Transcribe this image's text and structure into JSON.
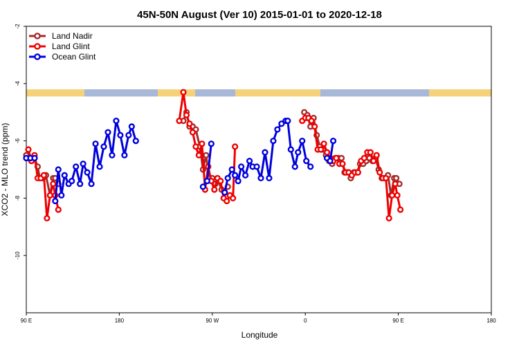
{
  "chart_data": {
    "type": "line",
    "title": "45N-50N August (Ver 10)   2015-01-01 to 2020-12-18",
    "xlabel": "Longitude",
    "ylabel": "XCO2 - MLO trend (ppm)",
    "xlim": [
      90,
      450
    ],
    "ylim": [
      -12,
      -2
    ],
    "x_ticks": [
      {
        "value": 90,
        "label": "90 E"
      },
      {
        "value": 180,
        "label": "180"
      },
      {
        "value": 270,
        "label": "90 W"
      },
      {
        "value": 360,
        "label": "0"
      },
      {
        "value": 450,
        "label": "90 E"
      },
      {
        "value": 540,
        "label": "180"
      }
    ],
    "y_ticks": [
      {
        "value": -2,
        "label": "-2"
      },
      {
        "value": -4,
        "label": "-4"
      },
      {
        "value": -6,
        "label": "-6"
      },
      {
        "value": -8,
        "label": "-8"
      },
      {
        "value": -10,
        "label": "-10"
      }
    ],
    "x_domain": [
      90,
      540
    ],
    "grid": false,
    "legend_position": "top-left",
    "land_mask_band": {
      "y_top": -4.2,
      "y_bottom": -4.45,
      "land_color": "#f5d27a",
      "ocean_color": "#a8b8d8"
    },
    "series": [
      {
        "name": "Land Nadir",
        "color": "#a52a2a",
        "points": [
          [
            90,
            -6.5
          ],
          [
            92,
            -6.6
          ],
          [
            95,
            -6.7
          ],
          [
            98,
            -6.6
          ],
          [
            101,
            -6.9
          ],
          [
            103,
            -7.3
          ],
          [
            106,
            -7.3
          ],
          [
            109,
            -7.2
          ],
          [
            113,
            -7.9
          ],
          [
            116,
            -7.3
          ],
          [
            118,
            -7.3
          ],
          [
            121,
            -7.5
          ],
          [
            242,
            -5.3
          ],
          [
            245,
            -5.0
          ],
          [
            248,
            -5.5
          ],
          [
            251,
            -5.5
          ],
          [
            254,
            -5.6
          ],
          [
            258,
            -6.2
          ],
          [
            261,
            -7.0
          ],
          [
            264,
            -6.5
          ],
          [
            267,
            -7.3
          ],
          [
            270,
            -7.3
          ],
          [
            273,
            -7.5
          ],
          [
            276,
            -7.4
          ],
          [
            279,
            -7.7
          ],
          [
            282,
            -7.8
          ],
          [
            285,
            -7.6
          ],
          [
            359,
            -5.0
          ],
          [
            362,
            -5.1
          ],
          [
            365,
            -5.5
          ],
          [
            368,
            -5.2
          ],
          [
            371,
            -5.8
          ],
          [
            374,
            -6.2
          ],
          [
            377,
            -6.3
          ],
          [
            380,
            -6.5
          ],
          [
            383,
            -6.7
          ],
          [
            386,
            -6.8
          ],
          [
            389,
            -6.6
          ],
          [
            392,
            -6.6
          ],
          [
            395,
            -6.6
          ],
          [
            398,
            -7.1
          ],
          [
            401,
            -7.1
          ],
          [
            404,
            -7.3
          ],
          [
            407,
            -7.1
          ],
          [
            410,
            -7.1
          ],
          [
            413,
            -6.8
          ],
          [
            416,
            -6.8
          ],
          [
            419,
            -6.7
          ],
          [
            422,
            -6.6
          ],
          [
            425,
            -6.7
          ],
          [
            428,
            -6.6
          ],
          [
            431,
            -7.0
          ],
          [
            434,
            -7.3
          ],
          [
            437,
            -7.3
          ],
          [
            440,
            -7.2
          ],
          [
            443,
            -7.9
          ],
          [
            446,
            -7.3
          ],
          [
            448,
            -7.3
          ],
          [
            451,
            -7.5
          ]
        ]
      },
      {
        "name": "Land Glint",
        "color": "#ee0000",
        "points": [
          [
            92,
            -6.3
          ],
          [
            95,
            -6.7
          ],
          [
            98,
            -6.5
          ],
          [
            101,
            -7.3
          ],
          [
            104,
            -7.3
          ],
          [
            107,
            -7.2
          ],
          [
            110,
            -8.7
          ],
          [
            113,
            -7.9
          ],
          [
            116,
            -7.5
          ],
          [
            118,
            -7.9
          ],
          [
            121,
            -8.4
          ],
          [
            238,
            -5.3
          ],
          [
            242,
            -4.3
          ],
          [
            245,
            -5.1
          ],
          [
            248,
            -5.4
          ],
          [
            251,
            -5.7
          ],
          [
            254,
            -6.2
          ],
          [
            257,
            -6.5
          ],
          [
            260,
            -6.1
          ],
          [
            263,
            -7.7
          ],
          [
            266,
            -6.9
          ],
          [
            269,
            -7.4
          ],
          [
            272,
            -7.7
          ],
          [
            275,
            -7.3
          ],
          [
            278,
            -7.4
          ],
          [
            281,
            -8.0
          ],
          [
            284,
            -8.1
          ],
          [
            287,
            -7.9
          ],
          [
            290,
            -8.0
          ],
          [
            292,
            -6.2
          ],
          [
            357,
            -5.3
          ],
          [
            360,
            -5.2
          ],
          [
            363,
            -5.2
          ],
          [
            366,
            -5.3
          ],
          [
            369,
            -5.5
          ],
          [
            372,
            -6.3
          ],
          [
            375,
            -6.3
          ],
          [
            378,
            -6.1
          ],
          [
            381,
            -6.4
          ],
          [
            384,
            -6.6
          ],
          [
            387,
            -6.7
          ],
          [
            390,
            -6.6
          ],
          [
            393,
            -6.8
          ],
          [
            396,
            -6.8
          ],
          [
            399,
            -7.1
          ],
          [
            402,
            -7.1
          ],
          [
            405,
            -7.2
          ],
          [
            408,
            -7.1
          ],
          [
            411,
            -7.1
          ],
          [
            414,
            -6.7
          ],
          [
            417,
            -6.6
          ],
          [
            420,
            -6.4
          ],
          [
            423,
            -6.4
          ],
          [
            426,
            -6.7
          ],
          [
            429,
            -6.5
          ],
          [
            432,
            -7.1
          ],
          [
            435,
            -7.3
          ],
          [
            438,
            -7.3
          ],
          [
            441,
            -8.7
          ],
          [
            444,
            -7.9
          ],
          [
            447,
            -7.5
          ],
          [
            449,
            -7.9
          ],
          [
            452,
            -8.4
          ]
        ]
      },
      {
        "name": "Ocean Glint",
        "color": "#0000dd",
        "points": [
          [
            90,
            -6.6
          ],
          [
            94,
            -6.6
          ],
          [
            98,
            -6.6
          ],
          [
            118,
            -8.1
          ],
          [
            121,
            -7.0
          ],
          [
            124,
            -7.9
          ],
          [
            127,
            -7.2
          ],
          [
            131,
            -7.5
          ],
          [
            134,
            -7.4
          ],
          [
            138,
            -6.9
          ],
          [
            142,
            -7.5
          ],
          [
            145,
            -6.8
          ],
          [
            149,
            -7.1
          ],
          [
            153,
            -7.5
          ],
          [
            157,
            -6.1
          ],
          [
            161,
            -6.9
          ],
          [
            165,
            -6.2
          ],
          [
            169,
            -5.7
          ],
          [
            173,
            -6.5
          ],
          [
            177,
            -5.3
          ],
          [
            181,
            -5.8
          ],
          [
            185,
            -6.5
          ],
          [
            189,
            -5.8
          ],
          [
            192,
            -5.5
          ],
          [
            196,
            -6.0
          ],
          [
            261,
            -7.6
          ],
          [
            265,
            -7.4
          ],
          [
            269,
            -6.1
          ],
          [
            282,
            -7.8
          ],
          [
            285,
            -7.3
          ],
          [
            289,
            -7.0
          ],
          [
            292,
            -7.2
          ],
          [
            295,
            -7.4
          ],
          [
            298,
            -6.9
          ],
          [
            302,
            -7.2
          ],
          [
            306,
            -6.7
          ],
          [
            309,
            -6.9
          ],
          [
            313,
            -6.9
          ],
          [
            317,
            -7.3
          ],
          [
            321,
            -6.4
          ],
          [
            325,
            -7.3
          ],
          [
            329,
            -6.0
          ],
          [
            333,
            -5.6
          ],
          [
            337,
            -5.4
          ],
          [
            341,
            -5.3
          ],
          [
            343,
            -5.3
          ],
          [
            346,
            -6.3
          ],
          [
            350,
            -6.9
          ],
          [
            353,
            -6.4
          ],
          [
            357,
            -6.0
          ],
          [
            361,
            -6.7
          ],
          [
            365,
            -6.9
          ],
          [
            381,
            -6.6
          ],
          [
            384,
            -6.7
          ],
          [
            387,
            -6.0
          ]
        ]
      }
    ]
  }
}
